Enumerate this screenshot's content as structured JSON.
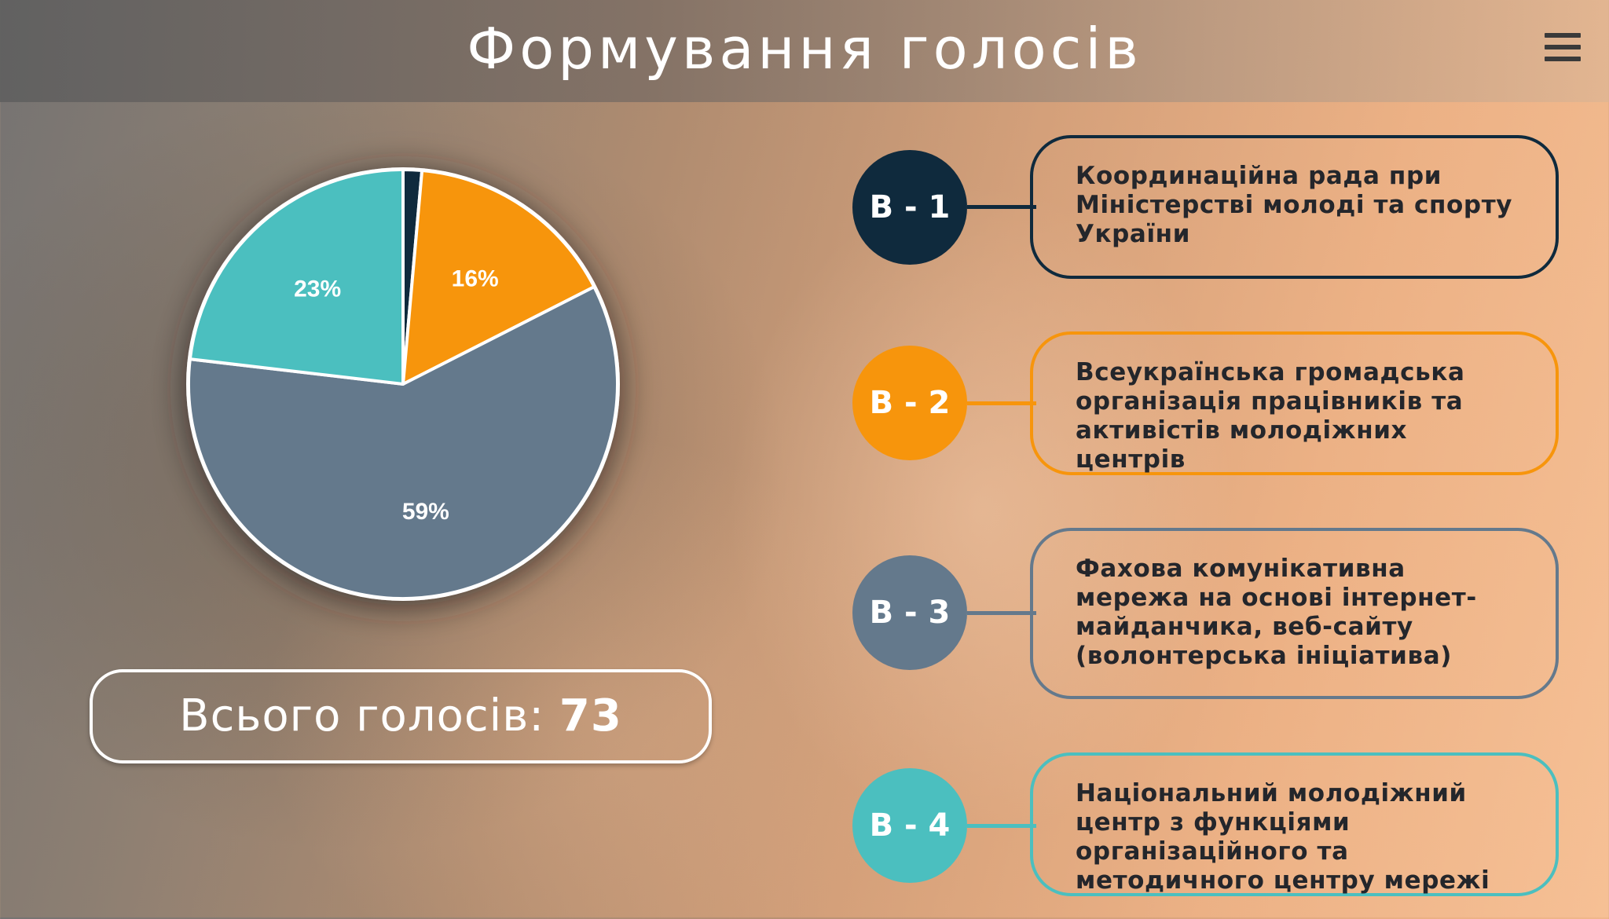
{
  "header": {
    "title": "Формування голосів",
    "menu_icon": "hamburger-menu-icon"
  },
  "chart_data": {
    "type": "pie",
    "slices": [
      {
        "label": "В - 1",
        "value": 1.4,
        "color": "#0f2a3d",
        "data_label": ""
      },
      {
        "label": "В - 2",
        "value": 16,
        "color": "#f7950c",
        "data_label": "16%"
      },
      {
        "label": "В - 3",
        "value": 59,
        "color": "#64798c",
        "data_label": "59%"
      },
      {
        "label": "В - 4",
        "value": 23,
        "color": "#4bbfbf",
        "data_label": "23%"
      }
    ]
  },
  "total": {
    "label": "Всього голосів: ",
    "value": "73"
  },
  "legend": [
    {
      "badge": "В - 1",
      "color": "#0f2a3d",
      "text": "Координаційна рада при Міністерстві молоді та спорту України"
    },
    {
      "badge": "В - 2",
      "color": "#f7950c",
      "text": "Всеукраїнська громадська організація працівників та активістів молодіжних центрів"
    },
    {
      "badge": "В - 3",
      "color": "#64798c",
      "text": "Фахова комунікативна мережа на основі інтернет-майданчика, веб-сайту (волонтерська ініціатива)"
    },
    {
      "badge": "В - 4",
      "color": "#4bbfbf",
      "text": "Національний молодіжний центр з функціями організаційного та методичного центру мережі"
    }
  ]
}
